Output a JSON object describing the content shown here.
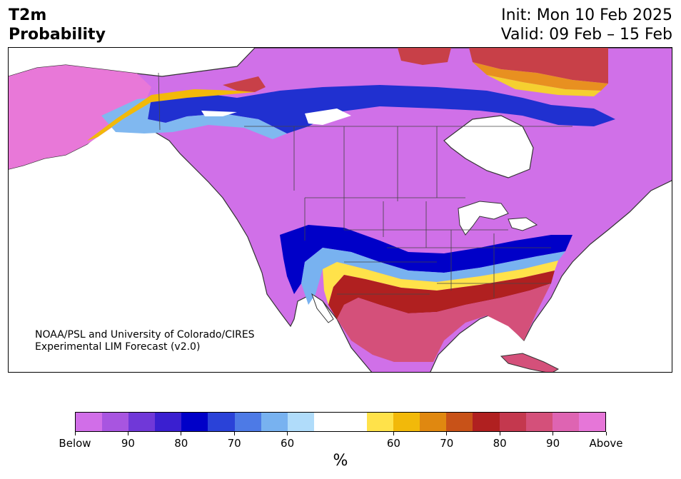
{
  "header": {
    "title_line1": "T2m",
    "title_line2": "Probability",
    "init_text": "Init: Mon 10 Feb 2025",
    "valid_text": "Valid: 09 Feb – 15 Feb"
  },
  "credit": {
    "line1": "NOAA/PSL and University of Colorado/CIRES",
    "line2": "Experimental LIM Forecast (v2.0)"
  },
  "colorbar": {
    "colors": [
      "#d16ee8",
      "#a855e0",
      "#7038d8",
      "#3a1fd0",
      "#0000c8",
      "#2a42d8",
      "#4d7ae6",
      "#78b2f0",
      "#b0dcfa",
      "#ffffff",
      "#ffffff",
      "#ffe24a",
      "#f2b90a",
      "#e08810",
      "#c85218",
      "#b02020",
      "#c4384e",
      "#d4507a",
      "#de64b2",
      "#e676d8"
    ],
    "ticks": [
      {
        "label": "Below",
        "index": 0
      },
      {
        "label": "90",
        "index": 2
      },
      {
        "label": "80",
        "index": 4
      },
      {
        "label": "70",
        "index": 6
      },
      {
        "label": "60",
        "index": 8
      },
      {
        "label": "60",
        "index": 12
      },
      {
        "label": "70",
        "index": 14
      },
      {
        "label": "80",
        "index": 16
      },
      {
        "label": "90",
        "index": 18
      },
      {
        "label": "Above",
        "index": 20
      }
    ],
    "unit": "%"
  }
}
